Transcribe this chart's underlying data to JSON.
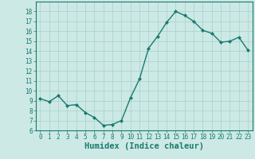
{
  "x": [
    0,
    1,
    2,
    3,
    4,
    5,
    6,
    7,
    8,
    9,
    10,
    11,
    12,
    13,
    14,
    15,
    16,
    17,
    18,
    19,
    20,
    21,
    22,
    23
  ],
  "y": [
    9.2,
    8.9,
    9.5,
    8.5,
    8.6,
    7.8,
    7.3,
    6.5,
    6.6,
    7.0,
    9.3,
    11.2,
    14.3,
    15.5,
    16.9,
    18.0,
    17.6,
    17.0,
    16.1,
    15.8,
    14.9,
    15.0,
    15.4,
    14.1
  ],
  "xlabel": "Humidex (Indice chaleur)",
  "xlim": [
    -0.5,
    23.5
  ],
  "ylim": [
    6,
    19
  ],
  "yticks": [
    6,
    7,
    8,
    9,
    10,
    11,
    12,
    13,
    14,
    15,
    16,
    17,
    18
  ],
  "xticks": [
    0,
    1,
    2,
    3,
    4,
    5,
    6,
    7,
    8,
    9,
    10,
    11,
    12,
    13,
    14,
    15,
    16,
    17,
    18,
    19,
    20,
    21,
    22,
    23
  ],
  "line_color": "#1a7a6e",
  "marker": "D",
  "markersize": 2.0,
  "linewidth": 1.0,
  "bg_color": "#cce9e5",
  "grid_color": "#aed4cf",
  "tick_label_fontsize": 5.5,
  "xlabel_fontsize": 7.5,
  "spine_color": "#1a7a6e"
}
